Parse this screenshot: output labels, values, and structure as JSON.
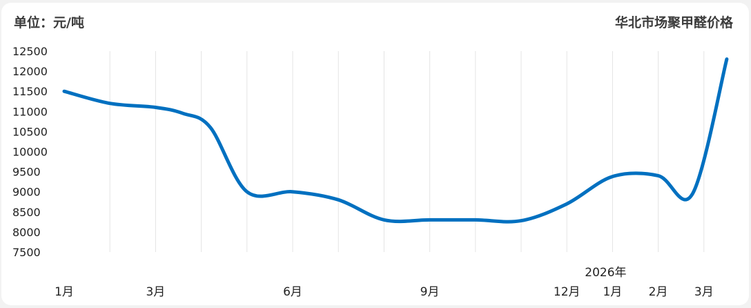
{
  "header": {
    "unit": "单位：元/吨",
    "title": "华北市场聚甲醛价格"
  },
  "chart_data": {
    "type": "line",
    "title": "华北市场聚甲醛价格",
    "ylabel": "单位：元/吨",
    "ylim": [
      7500,
      12500
    ],
    "yticks": [
      7500,
      8000,
      8500,
      9000,
      9500,
      10000,
      10500,
      11000,
      11500,
      12000,
      12500
    ],
    "grid": "vertical",
    "line_color": "#0070c0",
    "x_labels": [
      {
        "text": "1月",
        "index": 0
      },
      {
        "text": "3月",
        "index": 2
      },
      {
        "text": "6月",
        "index": 5
      },
      {
        "text": "9月",
        "index": 8
      },
      {
        "text": "12月",
        "index": 11
      },
      {
        "text": "1月",
        "index": 12
      },
      {
        "text": "2月",
        "index": 13
      },
      {
        "text": "3月",
        "index": 14
      }
    ],
    "year_label": {
      "text": "2026年",
      "index": 12
    },
    "series": [
      {
        "points": [
          [
            0,
            11500
          ],
          [
            1,
            11200
          ],
          [
            2,
            11100
          ],
          [
            2.6,
            10950
          ],
          [
            3.2,
            10600
          ],
          [
            4,
            9000
          ],
          [
            5,
            9000
          ],
          [
            6,
            8800
          ],
          [
            7,
            8300
          ],
          [
            8,
            8300
          ],
          [
            9,
            8300
          ],
          [
            10,
            8280
          ],
          [
            11,
            8700
          ],
          [
            12,
            9380
          ],
          [
            13,
            9400
          ],
          [
            13.75,
            8950
          ],
          [
            14.5,
            12300
          ]
        ]
      }
    ]
  }
}
